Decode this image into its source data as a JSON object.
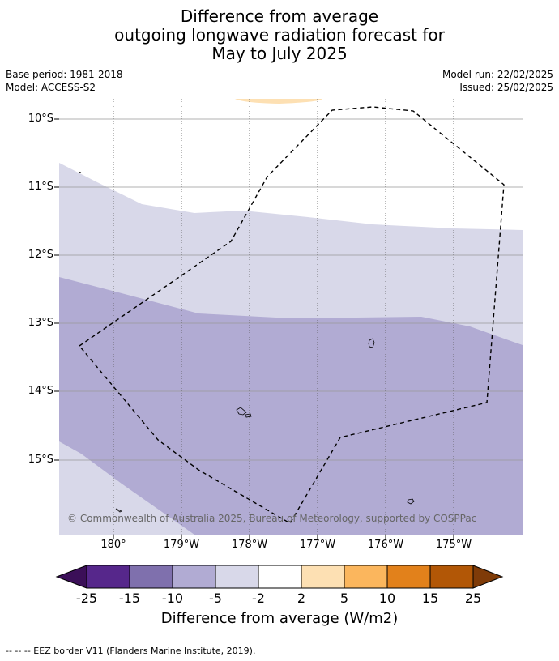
{
  "title": {
    "line1": "Difference from average",
    "line2": "outgoing longwave radiation forecast for",
    "line3": "May to July 2025"
  },
  "meta": {
    "base_period": "Base period: 1981-2018",
    "model": "Model: ACCESS-S2",
    "model_run": "Model run: 22/02/2025",
    "issued": "Issued: 25/02/2025"
  },
  "map": {
    "lat_labels": [
      "10°S",
      "11°S",
      "12°S",
      "13°S",
      "14°S",
      "15°S"
    ],
    "lon_labels": [
      "180°",
      "179°W",
      "178°W",
      "177°W",
      "176°W",
      "175°W"
    ],
    "copyright": "© Commonwealth of Australia 2025, Bureau of Meteorology, supported by COSPPac",
    "colors": {
      "band_minus5_minus2": "#d8d8e9",
      "band_minus10_minus5": "#b1abd3",
      "band_2_5": "#fde0b3",
      "border": "#000000"
    }
  },
  "colorbar": {
    "ticks": [
      "-25",
      "-15",
      "-10",
      "-5",
      "-2",
      "2",
      "5",
      "10",
      "15",
      "25"
    ],
    "colors": [
      "#3b0f58",
      "#56278b",
      "#7f70ad",
      "#b1abd3",
      "#d8d8e9",
      "#ffffff",
      "#fde0b3",
      "#fbb65d",
      "#e2811b",
      "#b25706",
      "#7f3b08"
    ],
    "title": "Difference from average (W/m2)"
  },
  "footer": "-- -- -- EEZ border V11 (Flanders Marine Institute, 2019)."
}
